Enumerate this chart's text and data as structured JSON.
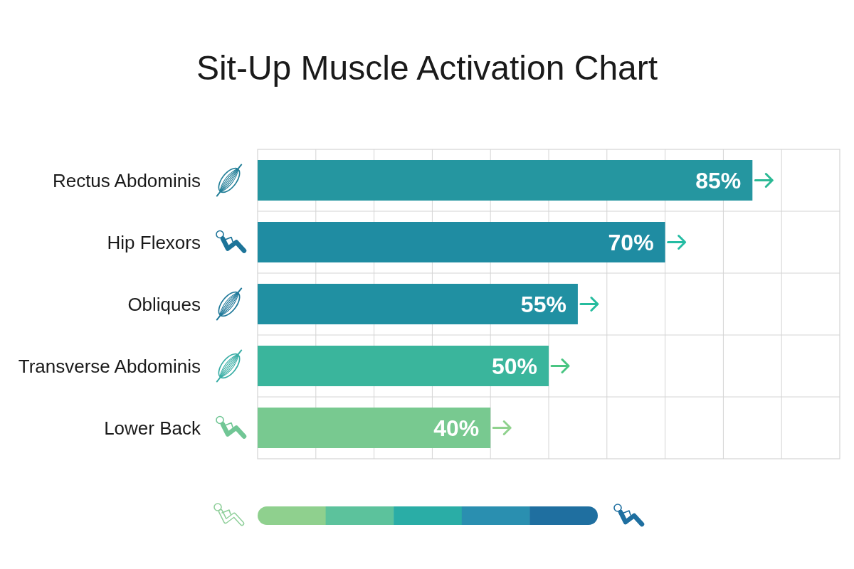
{
  "chart_data": {
    "type": "bar",
    "orientation": "horizontal",
    "title": "Sit-Up Muscle Activation Chart",
    "categories": [
      "Rectus Abdominis",
      "Hip Flexors",
      "Obliques",
      "Transverse Abdominis",
      "Lower Back"
    ],
    "values": [
      85,
      70,
      55,
      50,
      40
    ],
    "value_labels": [
      "85%",
      "70%",
      "55%",
      "50%",
      "40%"
    ],
    "colors": [
      "#2596a0",
      "#1f8ca2",
      "#2090a2",
      "#3ab59c",
      "#78c990"
    ],
    "xlim": [
      0,
      100
    ],
    "xticks": [
      {
        "value": 10,
        "label": null
      },
      {
        "value": 20,
        "label": null
      },
      {
        "value": 30,
        "label": null
      },
      {
        "value": 40,
        "label": null
      },
      {
        "value": 50,
        "label": null
      },
      {
        "value": 60,
        "label": null
      },
      {
        "value": 70,
        "label": null
      },
      {
        "value": 80,
        "label": null
      },
      {
        "value": 90,
        "label": null
      }
    ],
    "grid": true,
    "tick_labels": "y"
  }
}
